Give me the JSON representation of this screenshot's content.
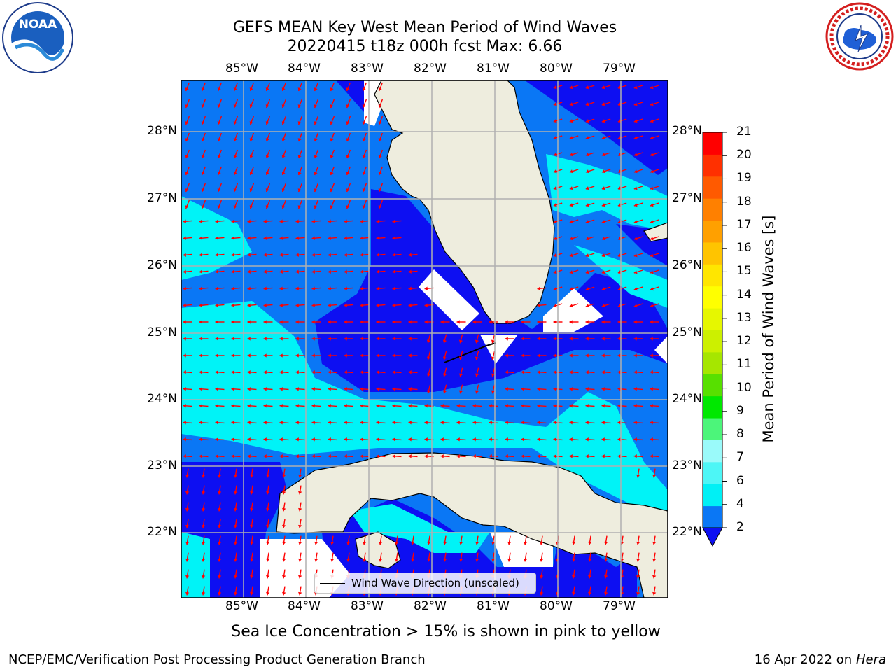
{
  "header": {
    "title_line1": "GEFS MEAN Key West Mean Period of Wind Waves",
    "title_line2": "20220415 t18z 000h fcst   Max: 6.66"
  },
  "logos": {
    "left": {
      "name": "noaa-logo",
      "text": "NOAA",
      "ring_text": "NATIONAL OCEANIC AND ATMOSPHERIC ADMINISTRATION · U.S. DEPARTMENT OF COMMERCE"
    },
    "right": {
      "name": "nws-logo",
      "ring_text": "NATIONAL WEATHER SERVICE"
    }
  },
  "map": {
    "lon_labels": [
      "85°W",
      "84°W",
      "83°W",
      "82°W",
      "81°W",
      "80°W",
      "79°W"
    ],
    "lat_labels": [
      "28°N",
      "27°N",
      "26°N",
      "25°N",
      "24°N",
      "23°N",
      "22°N"
    ],
    "legend_label": "Wind Wave Direction (unscaled)",
    "colors": {
      "land": "#eeedde",
      "level_2_4": "#0a77f5",
      "level_4_6": "#00f3f7",
      "level_below_2": "#0d0ff2",
      "arrows": "#ff0000",
      "grid": "#b0b0b0"
    }
  },
  "colorbar": {
    "label": "Mean Period of Wind Waves [s]",
    "ticks": [
      "21",
      "20",
      "19",
      "18",
      "17",
      "16",
      "15",
      "14",
      "13",
      "12",
      "11",
      "10",
      "9",
      "8",
      "7",
      "6",
      "4",
      "2"
    ],
    "colors": [
      "#0a77f5",
      "#00f0f5",
      "#4df6f6",
      "#9afafa",
      "#4cf57a",
      "#00e800",
      "#57e000",
      "#a6e600",
      "#ccf000",
      "#e6f700",
      "#ffff00",
      "#ffe600",
      "#ffc400",
      "#ffa000",
      "#ff8000",
      "#ff5a00",
      "#ff3000",
      "#ff0000"
    ],
    "extend_color": "#0d0ff2"
  },
  "footer": {
    "note": "Sea Ice Concentration > 15% is shown in pink to yellow",
    "left": "NCEP/EMC/Verification Post Processing Product Generation Branch",
    "right_text": "16 Apr 2022 on ",
    "right_italic": "Hera"
  }
}
